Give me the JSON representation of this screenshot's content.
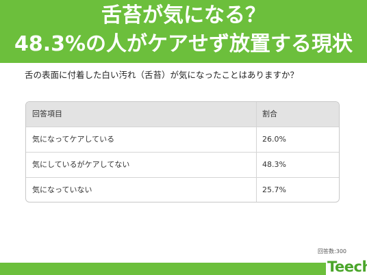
{
  "title": {
    "line1": "舌苔が気になる？",
    "line2": "48.3%の人がケアせず放置する現状"
  },
  "question": "舌の表面に付着した白い汚れ（舌苔）が気になったことはありますか？",
  "table": {
    "headers": [
      "回答項目",
      "割合"
    ],
    "rows": [
      [
        "気になってケアしている",
        "26.0%"
      ],
      [
        "気にしているがケアしてない",
        "48.3%"
      ],
      [
        "気になっていない",
        "25.7%"
      ]
    ]
  },
  "respondents": "回答数:300",
  "logo": "Teech",
  "colors": {
    "brand_green": "#6cbf3c",
    "header_row": "#e3e3e3"
  }
}
